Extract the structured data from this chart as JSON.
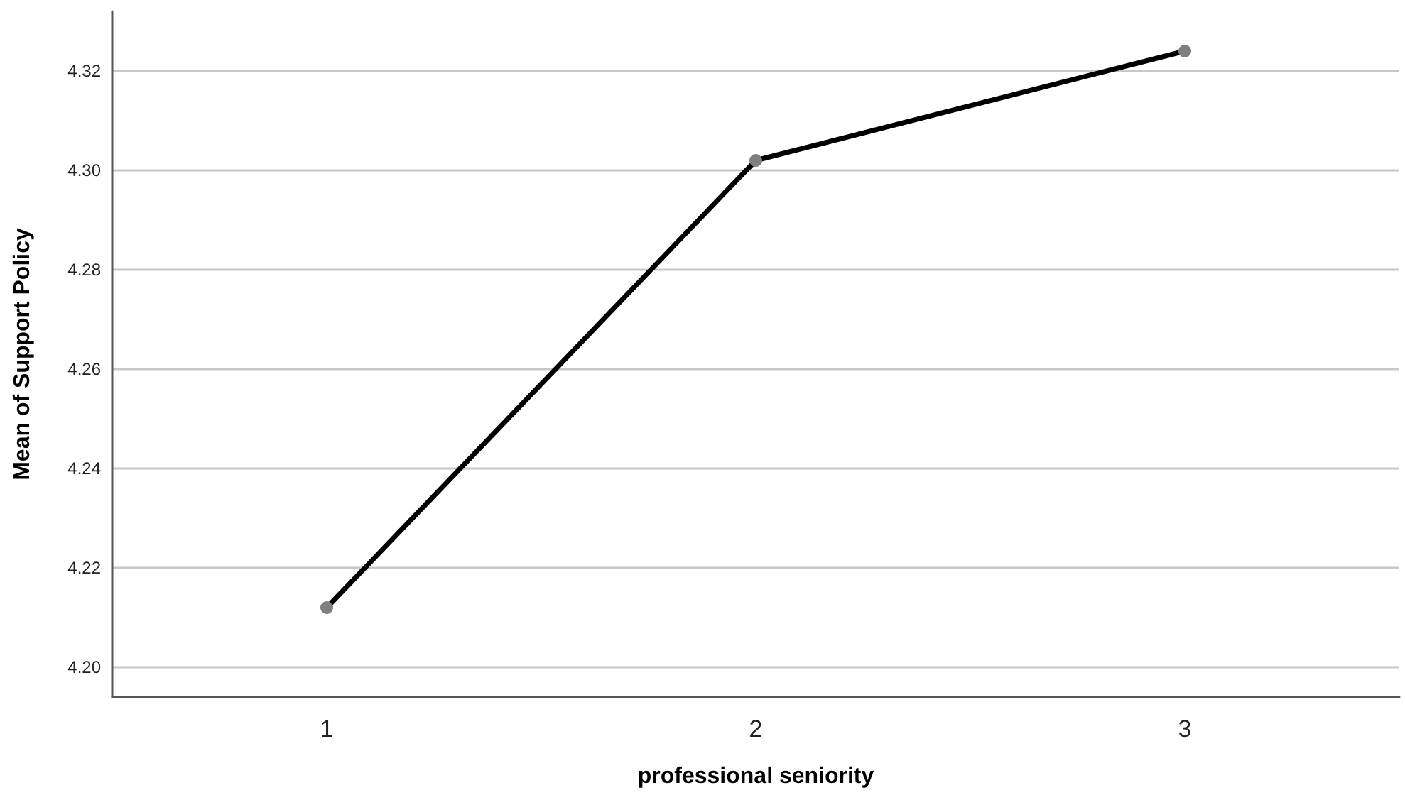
{
  "chart_data": {
    "type": "line",
    "xlabel": "professional seniority",
    "ylabel": "Mean of Support Policy",
    "categories": [
      "1",
      "2",
      "3"
    ],
    "series": [
      {
        "color": "#000000",
        "values": [
          4.212,
          4.302,
          4.324
        ]
      }
    ],
    "ylim": [
      4.194,
      4.332
    ],
    "yticks": [
      {
        "value": 4.2,
        "label": "4.20"
      },
      {
        "value": 4.22,
        "label": "4.22"
      },
      {
        "value": 4.24,
        "label": "4.24"
      },
      {
        "value": 4.26,
        "label": "4.26"
      },
      {
        "value": 4.28,
        "label": "4.28"
      },
      {
        "value": 4.3,
        "label": "4.30"
      },
      {
        "value": 4.32,
        "label": "4.32"
      }
    ],
    "grid": "y",
    "marker": "circle",
    "line_style": "solid"
  }
}
